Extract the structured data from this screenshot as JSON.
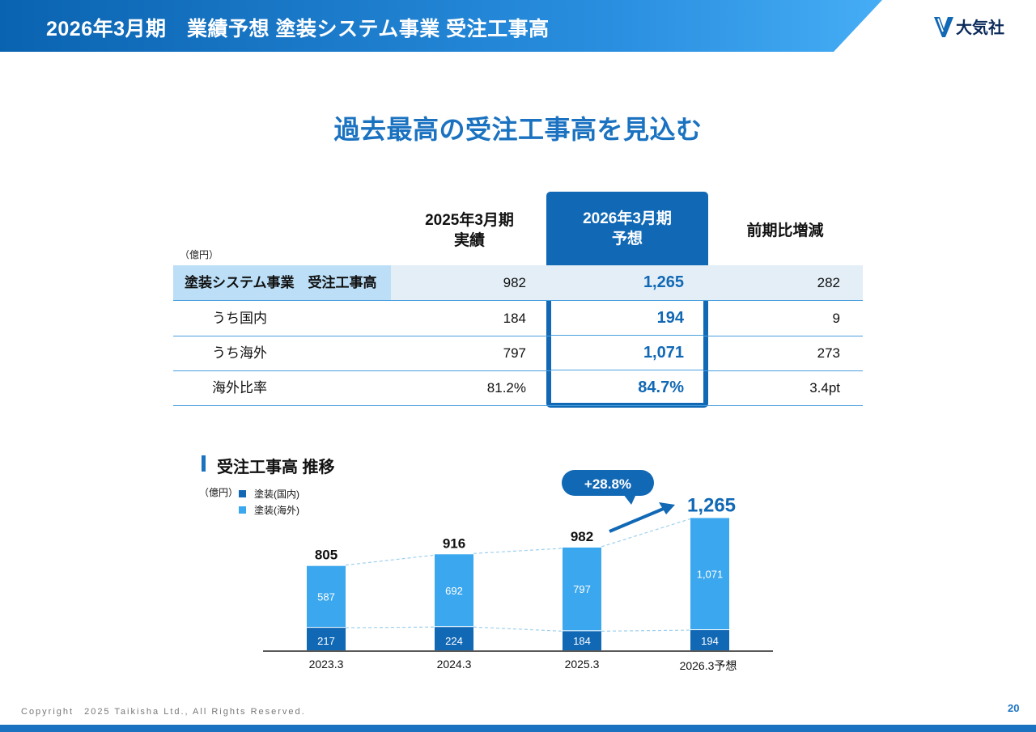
{
  "header": {
    "title": "2026年3月期　業績予想 塗装システム事業 受注工事高",
    "logo_text": "大気社",
    "brand_color": "#1168b5"
  },
  "headline": "過去最高の受注工事高を見込む",
  "table": {
    "unit": "（億円）",
    "col1": [
      "2025年3月期",
      "実績"
    ],
    "col2": [
      "2026年3月期",
      "予想"
    ],
    "col3": "前期比増減",
    "rows": [
      {
        "label": "塗装システム事業　受注工事高",
        "v1": "982",
        "v2": "1,265",
        "v3": "282"
      },
      {
        "label": "うち国内",
        "v1": "184",
        "v2": "194",
        "v3": "9"
      },
      {
        "label": "うち海外",
        "v1": "797",
        "v2": "1,071",
        "v3": "273"
      },
      {
        "label": "海外比率",
        "v1": "81.2%",
        "v2": "84.7%",
        "v3": "3.4pt"
      }
    ]
  },
  "chart_section": {
    "title": "受注工事高 推移",
    "unit": "（億円）",
    "legend": [
      {
        "label": "塗装(国内)",
        "color": "#1168b5"
      },
      {
        "label": "塗装(海外)",
        "color": "#3ba7ee"
      }
    ],
    "growth_badge": "+28.8%"
  },
  "chart_data": {
    "type": "bar",
    "stacked": true,
    "categories": [
      "2023.3",
      "2024.3",
      "2025.3",
      "2026.3予想"
    ],
    "series": [
      {
        "name": "塗装(国内)",
        "values": [
          217,
          224,
          184,
          194
        ],
        "color": "#1168b5"
      },
      {
        "name": "塗装(海外)",
        "values": [
          587,
          692,
          797,
          1071
        ],
        "color": "#3ba7ee"
      }
    ],
    "totals": [
      "805",
      "916",
      "982",
      "1,265"
    ],
    "domestic_labels": [
      "217",
      "224",
      "184",
      "194"
    ],
    "overseas_labels": [
      "587",
      "692",
      "797",
      "1,071"
    ],
    "ylim": [
      0,
      1300
    ]
  },
  "footer": {
    "copyright": "Copyright　2025 Taikisha Ltd., All Rights Reserved.",
    "page": "20"
  }
}
